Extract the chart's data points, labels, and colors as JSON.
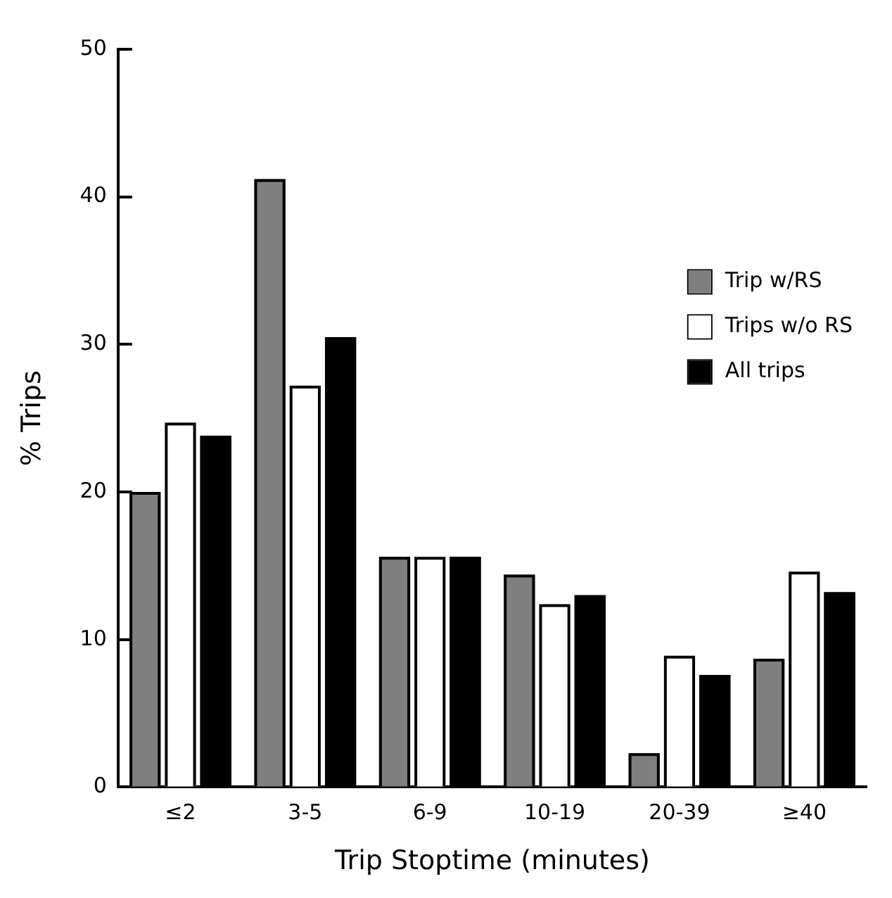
{
  "chart_data": {
    "type": "bar",
    "xlabel": "Trip Stoptime (minutes)",
    "ylabel": "% Trips",
    "categories": [
      "≤2",
      "3-5",
      "6-9",
      "10-19",
      "20-39",
      "≥40"
    ],
    "series": [
      {
        "name": "Trip w/RS",
        "color": "#7f7f7f",
        "values": [
          20,
          41.2,
          15.6,
          14.4,
          2.3,
          8.7
        ]
      },
      {
        "name": "Trips w/o RS",
        "color": "#ffffff",
        "values": [
          24.7,
          27.2,
          15.6,
          12.4,
          8.9,
          14.6
        ]
      },
      {
        "name": "All trips",
        "color": "#000000",
        "values": [
          23.8,
          30.5,
          15.6,
          13,
          7.6,
          13.2
        ]
      }
    ],
    "ylim": [
      0,
      50
    ],
    "yticks": [
      0,
      10,
      20,
      30,
      40,
      50
    ],
    "grid": false,
    "legend": "right"
  }
}
